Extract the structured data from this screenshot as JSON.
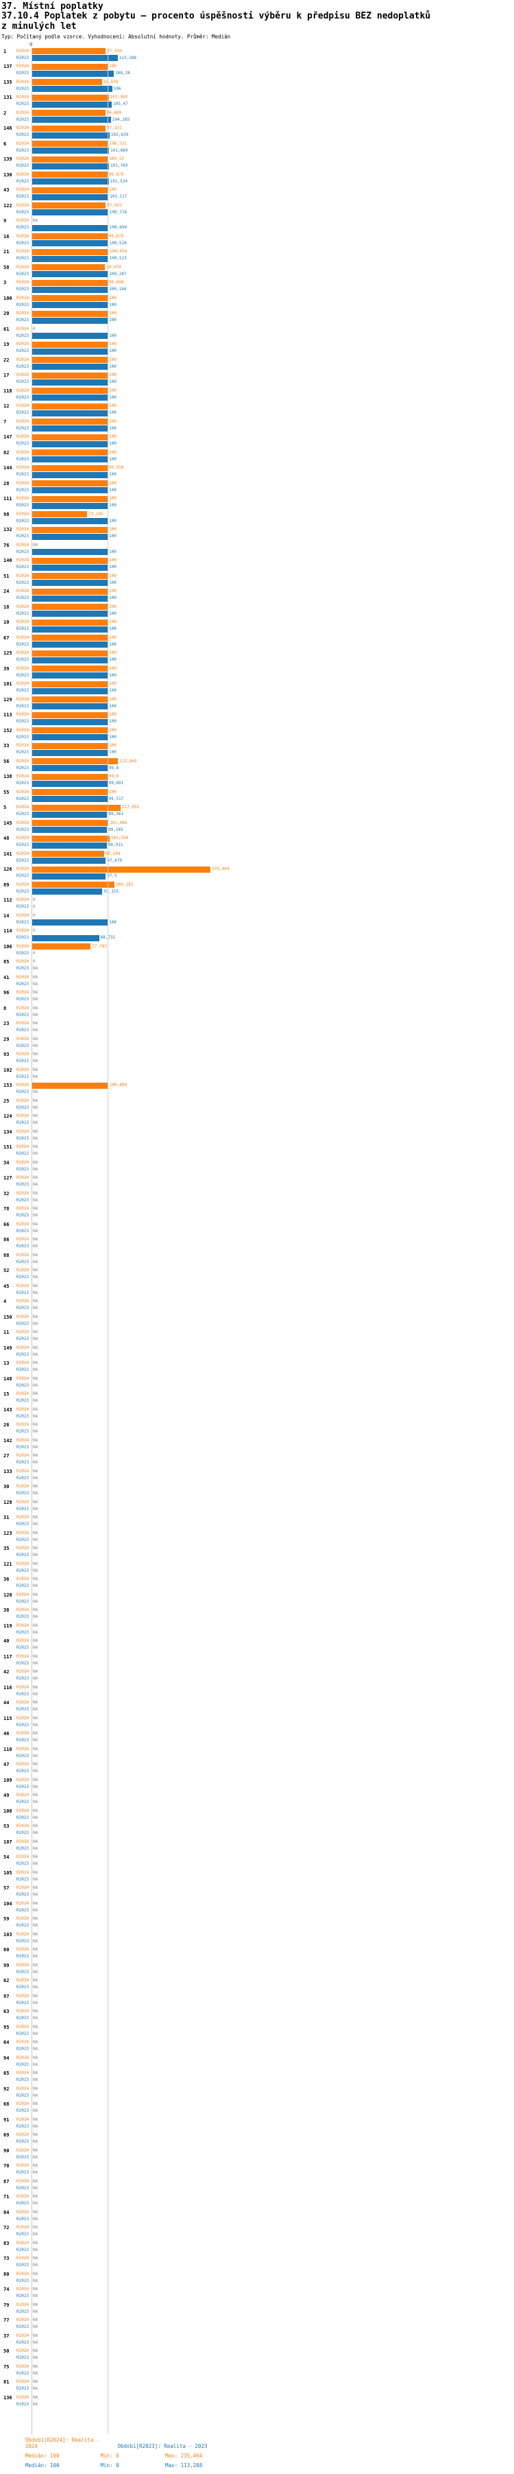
{
  "header": {
    "title": "37. Místní poplatky",
    "subtitle": "37.10.4 Poplatek z pobytu – procento úspěšnosti výběru k předpisu BEZ nedoplatků z minulých let",
    "meta": "Typ: Počítaný podle vzorce. Vyhodnocení: Absolutní hodnoty. Průměr: Medián"
  },
  "chart_data": {
    "type": "bar",
    "orientation": "horizontal",
    "title": "37.10.4 Poplatek z pobytu – procento úspěšnosti výběru k předpisu BEZ nedoplatků z minulých let",
    "series_labels": [
      "R2024",
      "R2023"
    ],
    "colors": {
      "r2024": "#ff7f0e",
      "r2023": "#1f77b4"
    },
    "axis": {
      "tick_zero": "0",
      "gridline_at": 100,
      "xlim": [
        0,
        240
      ]
    },
    "legend_position": "bottom",
    "rows_columns": [
      "rank",
      "R2024",
      "R2023"
    ],
    "rows": [
      [
        "1",
        "97,416",
        "113,288"
      ],
      [
        "137",
        "100",
        "108,28"
      ],
      [
        "135",
        "92,556",
        "106"
      ],
      [
        "131",
        "101,369",
        "105,47"
      ],
      [
        "2",
        "96,869",
        "104,285"
      ],
      [
        "146",
        "97,321",
        "102,639"
      ],
      [
        "6",
        "100,731",
        "101,869"
      ],
      [
        "139",
        "100,15",
        "101,769"
      ],
      [
        "130",
        "99,679",
        "101,524"
      ],
      [
        "43",
        "100",
        "101,117"
      ],
      [
        "122",
        "97,431",
        "100,716"
      ],
      [
        "9",
        "NA",
        "100,694"
      ],
      [
        "16",
        "99,679",
        "100,526"
      ],
      [
        "21",
        "100,934",
        "100,523"
      ],
      [
        "58",
        "96,479",
        "100,287"
      ],
      [
        "3",
        "99,698",
        "100,146"
      ],
      [
        "100",
        "100",
        "100"
      ],
      [
        "20",
        "100",
        "100"
      ],
      [
        "61",
        "0",
        "100"
      ],
      [
        "19",
        "100",
        "100"
      ],
      [
        "22",
        "100",
        "100"
      ],
      [
        "17",
        "100",
        "100"
      ],
      [
        "118",
        "100",
        "100"
      ],
      [
        "12",
        "100",
        "100"
      ],
      [
        "7",
        "100",
        "100"
      ],
      [
        "147",
        "100",
        "100"
      ],
      [
        "82",
        "100",
        "100"
      ],
      [
        "144",
        "99,558",
        "100"
      ],
      [
        "28",
        "100",
        "100"
      ],
      [
        "111",
        "100",
        "100"
      ],
      [
        "98",
        "73,105",
        "100"
      ],
      [
        "132",
        "100",
        "100"
      ],
      [
        "76",
        "NA",
        "100"
      ],
      [
        "140",
        "100",
        "100"
      ],
      [
        "51",
        "100",
        "100"
      ],
      [
        "24",
        "100",
        "100"
      ],
      [
        "18",
        "100",
        "100"
      ],
      [
        "10",
        "100",
        "100"
      ],
      [
        "67",
        "100",
        "100"
      ],
      [
        "125",
        "100",
        "100"
      ],
      [
        "39",
        "100",
        "100"
      ],
      [
        "101",
        "100",
        "100"
      ],
      [
        "129",
        "100",
        "100"
      ],
      [
        "113",
        "100",
        "100"
      ],
      [
        "152",
        "100",
        "100"
      ],
      [
        "33",
        "100",
        "100"
      ],
      [
        "56",
        "113,845",
        "99,8"
      ],
      [
        "138",
        "99,8",
        "99,601"
      ],
      [
        "55",
        "100",
        "99,517"
      ],
      [
        "5",
        "117,055",
        "99,361"
      ],
      [
        "145",
        "101,046",
        "99,145"
      ],
      [
        "48",
        "102,598",
        "98,911"
      ],
      [
        "141",
        "95,294",
        "97,679"
      ],
      [
        "126",
        "235,464",
        "97,5"
      ],
      [
        "89",
        "109,181",
        "93,155"
      ],
      [
        "112",
        "0",
        "0"
      ],
      [
        "14",
        "0",
        "100"
      ],
      [
        "114",
        "0",
        "88,732"
      ],
      [
        "106",
        "77,782",
        "0"
      ],
      [
        "85",
        "0",
        "NA"
      ],
      [
        "41",
        "NA",
        "NA"
      ],
      [
        "96",
        "NA",
        "NA"
      ],
      [
        "8",
        "NA",
        "NA"
      ],
      [
        "23",
        "NA",
        "NA"
      ],
      [
        "29",
        "NA",
        "NA"
      ],
      [
        "93",
        "NA",
        "NA"
      ],
      [
        "102",
        "NA",
        "NA"
      ],
      [
        "153",
        "100,809",
        "NA"
      ]
    ],
    "na_ranks": [
      "25",
      "124",
      "134",
      "151",
      "34",
      "127",
      "32",
      "78",
      "66",
      "86",
      "88",
      "52",
      "45",
      "4",
      "150",
      "11",
      "149",
      "13",
      "148",
      "15",
      "143",
      "26",
      "142",
      "27",
      "133",
      "30",
      "128",
      "31",
      "123",
      "35",
      "121",
      "36",
      "120",
      "38",
      "119",
      "40",
      "117",
      "42",
      "116",
      "44",
      "115",
      "46",
      "110",
      "47",
      "109",
      "49",
      "108",
      "53",
      "107",
      "54",
      "105",
      "57",
      "104",
      "59",
      "103",
      "60",
      "99",
      "62",
      "97",
      "63",
      "95",
      "64",
      "94",
      "65",
      "92",
      "68",
      "91",
      "69",
      "90",
      "70",
      "87",
      "71",
      "84",
      "72",
      "83",
      "73",
      "80",
      "74",
      "79",
      "77",
      "37",
      "50",
      "75",
      "81",
      "136"
    ]
  },
  "legend": {
    "r2024": "Období[R2024]: Realita - 2024",
    "r2023": "Období[R2023]: Realita - 2023"
  },
  "stats": {
    "r2024": {
      "median": "Medián: 100",
      "min": "Min: 0",
      "max": "Max: 235,464"
    },
    "r2023": {
      "median": "Medián: 100",
      "min": "Min: 0",
      "max": "Max: 113,288"
    }
  }
}
